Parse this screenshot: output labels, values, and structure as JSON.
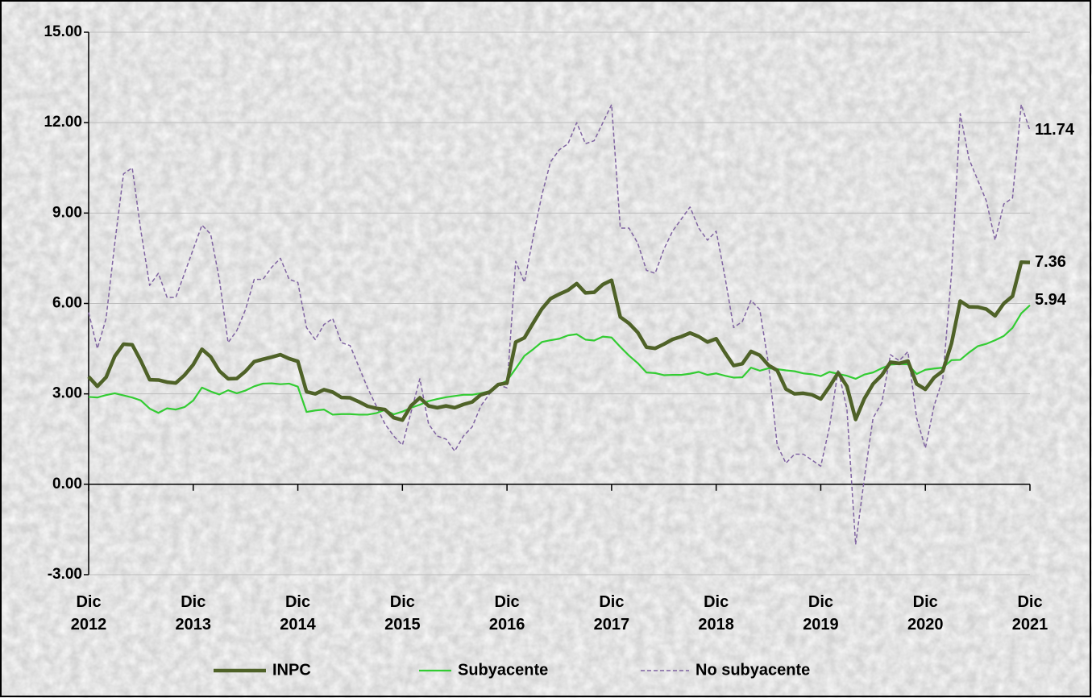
{
  "chart_data": {
    "type": "line",
    "categories": [
      "Dic 2012",
      null,
      null,
      null,
      null,
      null,
      null,
      null,
      null,
      null,
      null,
      null,
      "Dic 2013",
      null,
      null,
      null,
      null,
      null,
      null,
      null,
      null,
      null,
      null,
      null,
      "Dic 2014",
      null,
      null,
      null,
      null,
      null,
      null,
      null,
      null,
      null,
      null,
      null,
      "Dic 2015",
      null,
      null,
      null,
      null,
      null,
      null,
      null,
      null,
      null,
      null,
      null,
      "Dic 2016",
      null,
      null,
      null,
      null,
      null,
      null,
      null,
      null,
      null,
      null,
      null,
      "Dic 2017",
      null,
      null,
      null,
      null,
      null,
      null,
      null,
      null,
      null,
      null,
      null,
      "Dic 2018",
      null,
      null,
      null,
      null,
      null,
      null,
      null,
      null,
      null,
      null,
      null,
      "Dic 2019",
      null,
      null,
      null,
      null,
      null,
      null,
      null,
      null,
      null,
      null,
      null,
      "Dic 2020",
      null,
      null,
      null,
      null,
      null,
      null,
      null,
      null,
      null,
      null,
      null,
      "Dic 2021"
    ],
    "ylim": [
      -3,
      15
    ],
    "yticks": [
      {
        "value": -3,
        "label": "-3.00"
      },
      {
        "value": 0,
        "label": "0.00"
      },
      {
        "value": 3,
        "label": "3.00"
      },
      {
        "value": 6,
        "label": "6.00"
      },
      {
        "value": 9,
        "label": "9.00"
      },
      {
        "value": 12,
        "label": "12.00"
      },
      {
        "value": 15,
        "label": "15.00"
      }
    ],
    "grid": true,
    "legend": "bottom",
    "series": [
      {
        "name": "INPC",
        "color": "#4f6228",
        "values": [
          3.57,
          3.25,
          3.55,
          4.25,
          4.65,
          4.63,
          4.09,
          3.47,
          3.46,
          3.39,
          3.36,
          3.62,
          3.97,
          4.48,
          4.23,
          3.76,
          3.5,
          3.51,
          3.75,
          4.07,
          4.15,
          4.22,
          4.3,
          4.17,
          4.08,
          3.07,
          3.0,
          3.14,
          3.06,
          2.88,
          2.87,
          2.74,
          2.59,
          2.52,
          2.48,
          2.21,
          2.13,
          2.61,
          2.87,
          2.6,
          2.54,
          2.6,
          2.54,
          2.65,
          2.73,
          2.97,
          3.06,
          3.31,
          3.36,
          4.72,
          4.86,
          5.35,
          5.82,
          6.16,
          6.31,
          6.44,
          6.66,
          6.35,
          6.37,
          6.63,
          6.77,
          5.55,
          5.34,
          5.04,
          4.55,
          4.51,
          4.65,
          4.81,
          4.9,
          5.02,
          4.9,
          4.72,
          4.83,
          4.37,
          3.94,
          4.0,
          4.41,
          4.28,
          3.95,
          3.78,
          3.16,
          3.0,
          3.02,
          2.97,
          2.83,
          3.24,
          3.7,
          3.25,
          2.15,
          2.84,
          3.33,
          3.62,
          4.05,
          4.01,
          4.09,
          3.33,
          3.15,
          3.54,
          3.76,
          4.67,
          6.08,
          5.89,
          5.88,
          5.81,
          5.59,
          6.0,
          6.24,
          7.37,
          7.36
        ]
      },
      {
        "name": "Subyacente",
        "color": "#33cc33",
        "values": [
          2.9,
          2.88,
          2.96,
          3.02,
          2.95,
          2.88,
          2.78,
          2.51,
          2.37,
          2.52,
          2.48,
          2.56,
          2.78,
          3.21,
          3.08,
          2.98,
          3.12,
          3.02,
          3.11,
          3.25,
          3.34,
          3.35,
          3.32,
          3.34,
          3.24,
          2.4,
          2.45,
          2.48,
          2.31,
          2.33,
          2.33,
          2.31,
          2.31,
          2.36,
          2.47,
          2.32,
          2.41,
          2.54,
          2.64,
          2.76,
          2.83,
          2.89,
          2.93,
          2.97,
          2.97,
          3.02,
          3.09,
          3.29,
          3.44,
          3.84,
          4.26,
          4.48,
          4.72,
          4.78,
          4.83,
          4.94,
          4.98,
          4.8,
          4.77,
          4.9,
          4.87,
          4.56,
          4.27,
          4.02,
          3.71,
          3.69,
          3.62,
          3.63,
          3.63,
          3.67,
          3.73,
          3.63,
          3.68,
          3.6,
          3.54,
          3.55,
          3.87,
          3.77,
          3.85,
          3.82,
          3.78,
          3.75,
          3.68,
          3.65,
          3.59,
          3.73,
          3.66,
          3.6,
          3.5,
          3.64,
          3.71,
          3.85,
          3.97,
          3.99,
          3.98,
          3.66,
          3.8,
          3.84,
          3.87,
          4.12,
          4.13,
          4.37,
          4.58,
          4.66,
          4.78,
          4.92,
          5.19,
          5.67,
          5.94
        ]
      },
      {
        "name": "No subyacente",
        "color": "#8064a2",
        "values": [
          5.7,
          4.5,
          5.5,
          8.0,
          10.3,
          10.5,
          8.4,
          6.6,
          7.0,
          6.2,
          6.2,
          7.0,
          7.8,
          8.6,
          8.3,
          6.8,
          4.7,
          5.1,
          5.8,
          6.8,
          6.8,
          7.2,
          7.5,
          6.8,
          6.7,
          5.2,
          4.8,
          5.3,
          5.5,
          4.7,
          4.6,
          3.9,
          3.2,
          2.6,
          2.0,
          1.6,
          1.3,
          2.4,
          3.5,
          2.0,
          1.6,
          1.5,
          1.1,
          1.6,
          1.9,
          2.6,
          3.0,
          3.3,
          3.2,
          7.4,
          6.7,
          8.2,
          9.6,
          10.7,
          11.1,
          11.3,
          12.0,
          11.3,
          11.4,
          12.0,
          12.6,
          8.5,
          8.5,
          8.0,
          7.1,
          7.0,
          7.8,
          8.4,
          8.8,
          9.2,
          8.5,
          8.1,
          8.4,
          6.9,
          5.2,
          5.4,
          6.1,
          5.8,
          4.0,
          1.3,
          0.7,
          1.0,
          1.0,
          0.8,
          0.6,
          1.9,
          3.8,
          2.5,
          -2.0,
          0.2,
          2.2,
          2.7,
          4.3,
          4.1,
          4.4,
          2.2,
          1.2,
          2.6,
          3.5,
          7.0,
          12.3,
          10.8,
          10.1,
          9.4,
          8.1,
          9.3,
          9.5,
          12.6,
          11.74
        ]
      }
    ]
  }
}
